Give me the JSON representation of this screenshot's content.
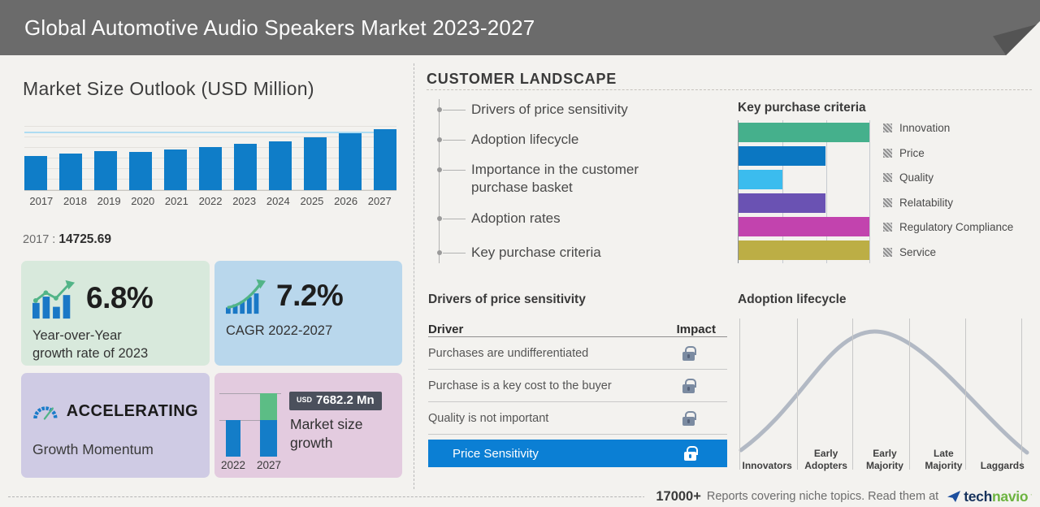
{
  "header": {
    "title": "Global Automotive Audio Speakers Market 2023-2027"
  },
  "colors": {
    "header_bar": "#6b6b6b",
    "primary_blue": "#0f7dc8",
    "highlight_row_blue": "#0b7fd4",
    "box_green": "#d8e9dc",
    "box_blue": "#b9d7ec",
    "box_purple": "#cfcbe4",
    "box_pink": "#e3cbdf",
    "growth_green": "#5cbd85",
    "lock_gray": "#7b8ba1",
    "brand_navy": "#16325c",
    "brand_green": "#6cb33f"
  },
  "left": {
    "chart_title": "Market Size Outlook (USD Million)",
    "base_year_label": "2017 :",
    "base_year_value": "14725.69",
    "yoy_value": "6.8%",
    "yoy_label_1": "Year-over-Year",
    "yoy_label_2": "growth rate of 2023",
    "cagr_value": "7.2%",
    "cagr_label": "CAGR 2022-2027",
    "momentum_value": "ACCELERATING",
    "momentum_label": "Growth Momentum",
    "growth_badge_currency": "USD",
    "growth_badge_value": "7682.2 Mn",
    "growth_label_1": "Market size",
    "growth_label_2": "growth"
  },
  "customer_landscape": {
    "title": "CUSTOMER LANDSCAPE",
    "items": [
      "Drivers of price sensitivity",
      "Adoption lifecycle",
      "Importance in the customer purchase basket",
      "Adoption rates",
      "Key purchase criteria"
    ]
  },
  "purchase_criteria": {
    "title": "Key purchase criteria"
  },
  "drivers": {
    "title": "Drivers of price sensitivity",
    "col_driver": "Driver",
    "col_impact": "Impact",
    "rows": [
      "Purchases are undifferentiated",
      "Purchase is a key cost to the buyer",
      "Quality is not important"
    ],
    "highlight": "Price Sensitivity"
  },
  "adoption": {
    "title": "Adoption lifecycle"
  },
  "footer": {
    "count": "17000+",
    "text": "Reports covering niche topics. Read them at",
    "brand_prefix": "tech",
    "brand_suffix": "navio"
  },
  "chart_data": [
    {
      "type": "bar",
      "title": "Market Size Outlook (USD Million)",
      "categories": [
        "2017",
        "2018",
        "2019",
        "2020",
        "2021",
        "2022",
        "2023",
        "2024",
        "2025",
        "2026",
        "2027"
      ],
      "values": [
        14725.69,
        15850,
        16600,
        16400,
        17300,
        18498,
        19756,
        21100,
        22700,
        24300,
        26180
      ],
      "labeled_value_year": "2017",
      "labeled_value": 14725.69,
      "ylabel": "USD Million",
      "ylim": [
        0,
        27000
      ],
      "bar_color": "#0f7dc8",
      "grid": true
    },
    {
      "type": "bar",
      "orientation": "horizontal",
      "title": "Key purchase criteria",
      "categories": [
        "Innovation",
        "Price",
        "Quality",
        "Relatability",
        "Regulatory Compliance",
        "Service"
      ],
      "values": [
        3,
        2,
        1,
        2,
        3,
        3
      ],
      "xlim": [
        0,
        3
      ],
      "colors": [
        "#45b08c",
        "#0b77c2",
        "#3bbcee",
        "#6a52b3",
        "#c243ae",
        "#bcae45"
      ],
      "legend_position": "right",
      "grid": true
    },
    {
      "type": "line",
      "title": "Adoption lifecycle",
      "shape": "bell-curve",
      "stages": [
        "Innovators",
        "Early Adopters",
        "Early Majority",
        "Late Majority",
        "Laggards"
      ],
      "peak_stage": "Early Majority",
      "line_color": "#b2b9c4",
      "grid": true
    },
    {
      "type": "bar",
      "title": "Market size growth",
      "categories": [
        "2022",
        "2027"
      ],
      "values": [
        18498,
        26180.2
      ],
      "delta_label": "USD 7682.2 Mn",
      "base_color": "#147dc8",
      "growth_color": "#5cbd85"
    }
  ]
}
